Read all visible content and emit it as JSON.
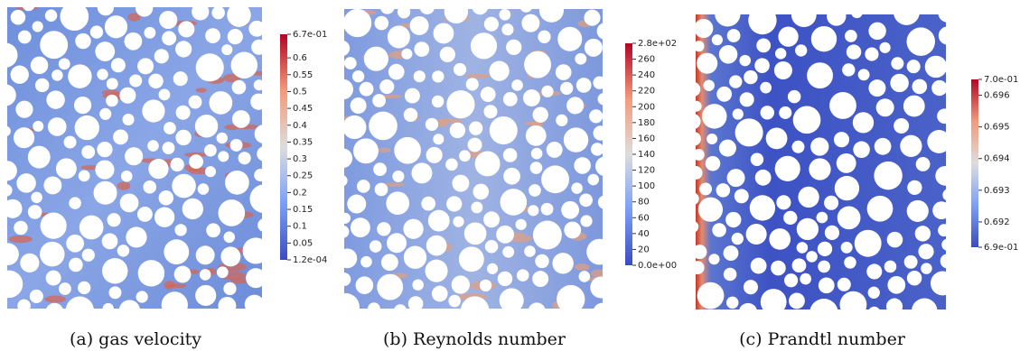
{
  "panels": [
    {
      "caption": "(a) gas velocity",
      "colorbar": {
        "ticks": [
          {
            "value": 0.67,
            "label": "6.7e-01"
          },
          0.6,
          0.55,
          0.5,
          0.45,
          0.4,
          0.35,
          0.3,
          0.25,
          0.2,
          0.15,
          0.1,
          0.05,
          {
            "value": 0.00012,
            "label": "1.2e-04"
          }
        ]
      }
    },
    {
      "caption": "(b) Reynolds number",
      "colorbar": {
        "ticks": [
          {
            "value": 280,
            "label": "2.8e+02"
          },
          260,
          240,
          220,
          200,
          180,
          160,
          140,
          120,
          100,
          80,
          60,
          40,
          20,
          {
            "value": 0,
            "label": "0.0e+00"
          }
        ]
      }
    },
    {
      "caption": "(c) Prandtl number",
      "colorbar": {
        "ticks": [
          {
            "value": 0.6965,
            "label": "7.0e-01"
          },
          0.696,
          0.695,
          0.694,
          0.693,
          0.692,
          {
            "value": 0.6912,
            "label": "6.9e-01"
          }
        ]
      }
    }
  ]
}
